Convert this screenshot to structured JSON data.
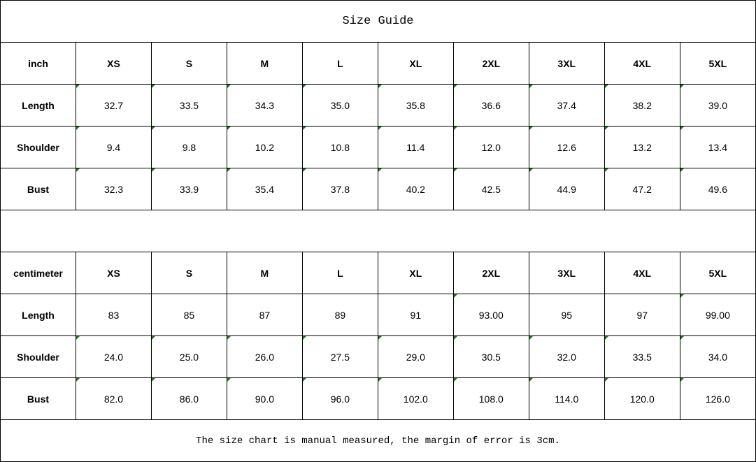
{
  "title": "Size Guide",
  "sizes": [
    "XS",
    "S",
    "M",
    "L",
    "XL",
    "2XL",
    "3XL",
    "4XL",
    "5XL"
  ],
  "tables": [
    {
      "unit": "inch",
      "rows": [
        {
          "label": "Length",
          "values": [
            "32.7",
            "33.5",
            "34.3",
            "35.0",
            "35.8",
            "36.6",
            "37.4",
            "38.2",
            "39.0"
          ],
          "marked": [
            1,
            1,
            1,
            1,
            1,
            1,
            1,
            1,
            1
          ]
        },
        {
          "label": "Shoulder",
          "values": [
            "9.4",
            "9.8",
            "10.2",
            "10.8",
            "11.4",
            "12.0",
            "12.6",
            "13.2",
            "13.4"
          ],
          "marked": [
            1,
            1,
            1,
            1,
            1,
            1,
            1,
            1,
            1
          ]
        },
        {
          "label": "Bust",
          "values": [
            "32.3",
            "33.9",
            "35.4",
            "37.8",
            "40.2",
            "42.5",
            "44.9",
            "47.2",
            "49.6"
          ],
          "marked": [
            1,
            1,
            1,
            1,
            1,
            1,
            1,
            1,
            1
          ]
        }
      ]
    },
    {
      "unit": "centimeter",
      "rows": [
        {
          "label": "Length",
          "values": [
            "83",
            "85",
            "87",
            "89",
            "91",
            "93.00",
            "95",
            "97",
            "99.00"
          ],
          "marked": [
            0,
            0,
            0,
            0,
            0,
            1,
            0,
            0,
            1
          ]
        },
        {
          "label": "Shoulder",
          "values": [
            "24.0",
            "25.0",
            "26.0",
            "27.5",
            "29.0",
            "30.5",
            "32.0",
            "33.5",
            "34.0"
          ],
          "marked": [
            1,
            1,
            1,
            1,
            1,
            1,
            1,
            1,
            1
          ]
        },
        {
          "label": "Bust",
          "values": [
            "82.0",
            "86.0",
            "90.0",
            "96.0",
            "102.0",
            "108.0",
            "114.0",
            "120.0",
            "126.0"
          ],
          "marked": [
            1,
            1,
            1,
            1,
            1,
            1,
            1,
            1,
            1
          ]
        }
      ]
    }
  ],
  "note": "The size chart is manual measured, the margin of error is 3cm.",
  "colors": {
    "marker": "#1a7a1a",
    "border": "#000000"
  }
}
